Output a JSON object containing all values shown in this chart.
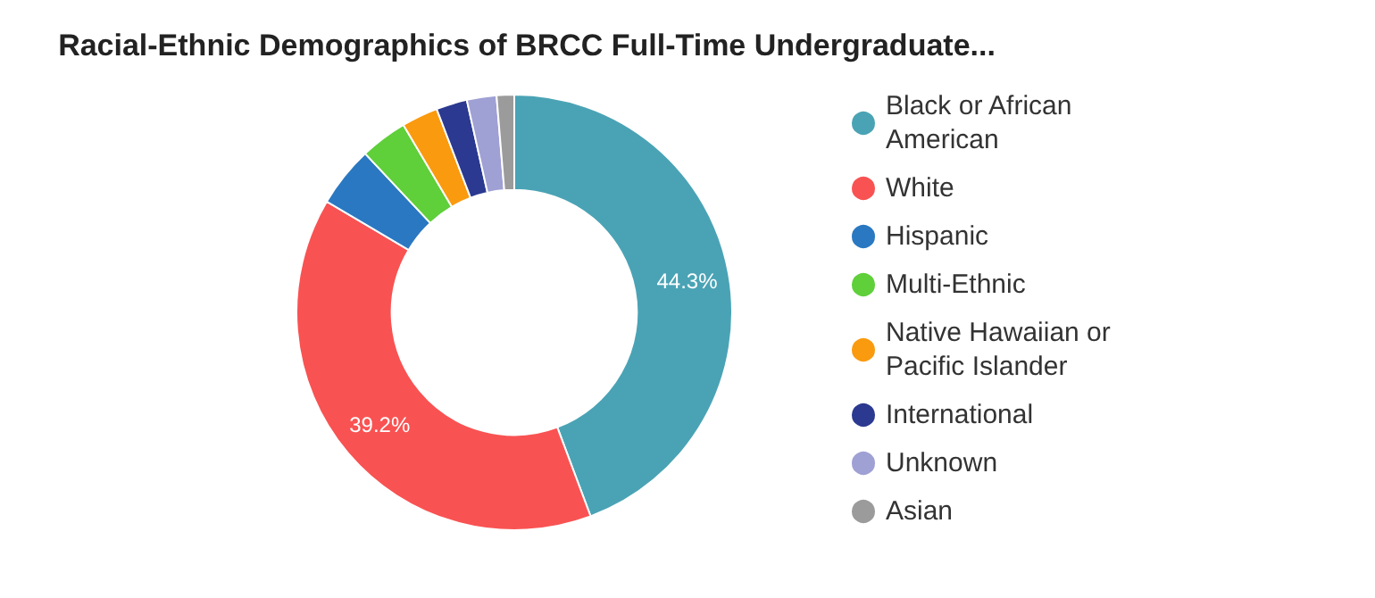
{
  "chart_data": {
    "type": "donut",
    "title": "Racial-Ethnic Demographics of BRCC Full-Time Undergraduate...",
    "categories": [
      "Black or African American",
      "White",
      "Hispanic",
      "Multi-Ethnic",
      "Native Hawaiian or Pacific Islander",
      "International",
      "Unknown",
      "Asian"
    ],
    "values": [
      44.3,
      39.2,
      4.5,
      3.5,
      2.7,
      2.3,
      2.2,
      1.3
    ],
    "colors": [
      "#4aa3b5",
      "#f95252",
      "#2a78c2",
      "#5fcf3a",
      "#fa9a0e",
      "#2b3990",
      "#9fa0d4",
      "#9b9b9b"
    ],
    "value_labels": [
      "44.3%",
      "39.2%",
      null,
      null,
      null,
      null,
      null,
      null
    ],
    "legend": "right"
  }
}
